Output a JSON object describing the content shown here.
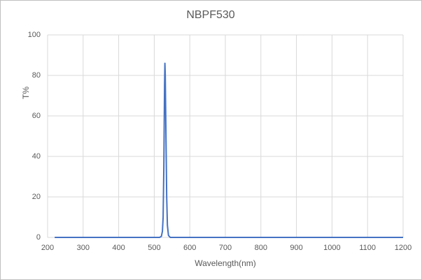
{
  "chart_data": {
    "type": "line",
    "title": "NBPF530",
    "x_label": "Wavelength(nm)",
    "y_label": "T%",
    "x": [
      220,
      500,
      515,
      520,
      523,
      525,
      527,
      529,
      530,
      531,
      533,
      535,
      537,
      540,
      545,
      560,
      1200
    ],
    "values": [
      0,
      0,
      0,
      0.5,
      3,
      10,
      35,
      75,
      86,
      80,
      50,
      20,
      6,
      1,
      0,
      0,
      0
    ],
    "color": "#4472c4",
    "xlim": [
      200,
      1200
    ],
    "xticks": [
      200,
      300,
      400,
      500,
      600,
      700,
      800,
      900,
      1000,
      1100,
      1200
    ],
    "ylim": [
      0,
      100
    ],
    "yticks": [
      0,
      20,
      40,
      60,
      80,
      100
    ],
    "grid": true
  }
}
